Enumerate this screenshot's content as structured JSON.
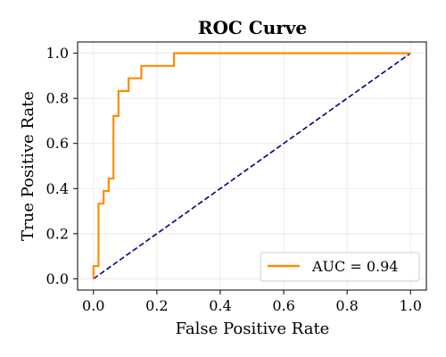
{
  "chart_data": {
    "type": "line",
    "title": "ROC Curve",
    "xlabel": "False Positive Rate",
    "ylabel": "True Positive Rate",
    "xlim": [
      -0.05,
      1.05
    ],
    "ylim": [
      -0.05,
      1.05
    ],
    "x_ticks": [
      "0.0",
      "0.2",
      "0.4",
      "0.6",
      "0.8",
      "1.0"
    ],
    "y_ticks": [
      "0.0",
      "0.2",
      "0.4",
      "0.6",
      "0.8",
      "1.0"
    ],
    "grid": true,
    "legend_position": "lower right",
    "series": [
      {
        "name": "AUC = 0.94",
        "color": "#ff8c00",
        "style": "solid",
        "points": [
          [
            0.0,
            0.0
          ],
          [
            0.0,
            0.056
          ],
          [
            0.016,
            0.056
          ],
          [
            0.016,
            0.333
          ],
          [
            0.032,
            0.333
          ],
          [
            0.032,
            0.389
          ],
          [
            0.048,
            0.389
          ],
          [
            0.048,
            0.444
          ],
          [
            0.063,
            0.444
          ],
          [
            0.063,
            0.722
          ],
          [
            0.079,
            0.722
          ],
          [
            0.079,
            0.833
          ],
          [
            0.111,
            0.833
          ],
          [
            0.111,
            0.889
          ],
          [
            0.151,
            0.889
          ],
          [
            0.151,
            0.944
          ],
          [
            0.254,
            0.944
          ],
          [
            0.254,
            1.0
          ],
          [
            1.0,
            1.0
          ]
        ]
      },
      {
        "color": "#000080",
        "style": "dashed",
        "points": [
          [
            0.0,
            0.0
          ],
          [
            1.0,
            1.0
          ]
        ]
      }
    ]
  }
}
